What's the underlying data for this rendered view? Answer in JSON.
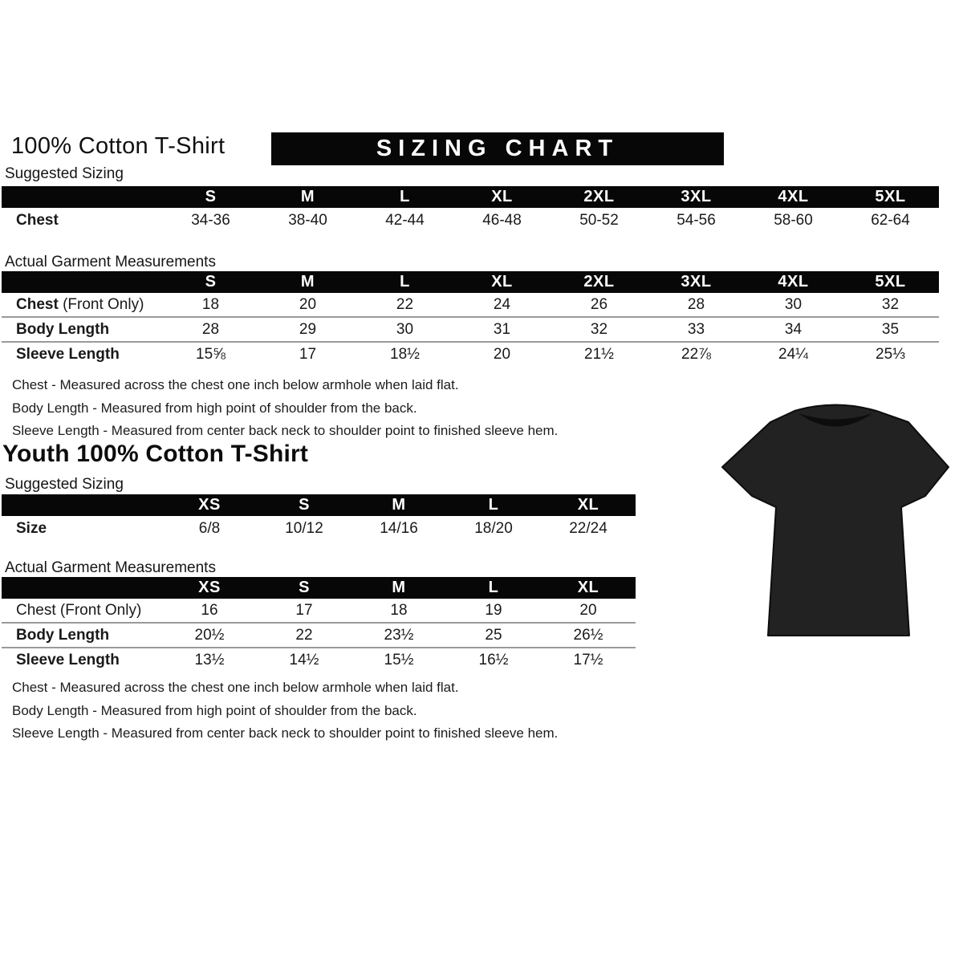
{
  "adult": {
    "title": "100% Cotton T-Shirt",
    "banner": "SIZING CHART",
    "suggested_label": "Suggested Sizing",
    "actual_label": "Actual Garment Measurements",
    "sizes": [
      "S",
      "M",
      "L",
      "XL",
      "2XL",
      "3XL",
      "4XL",
      "5XL"
    ],
    "suggested_rows": [
      {
        "label": "Chest",
        "suffix": "",
        "bold": true,
        "values": [
          "34-36",
          "38-40",
          "42-44",
          "46-48",
          "50-52",
          "54-56",
          "58-60",
          "62-64"
        ]
      }
    ],
    "actual_rows": [
      {
        "label": "Chest",
        "suffix": " (Front Only)",
        "bold": true,
        "values": [
          "18",
          "20",
          "22",
          "24",
          "26",
          "28",
          "30",
          "32"
        ]
      },
      {
        "label": "Body Length",
        "suffix": "",
        "bold": true,
        "values": [
          "28",
          "29",
          "30",
          "31",
          "32",
          "33",
          "34",
          "35"
        ]
      },
      {
        "label": "Sleeve Length",
        "suffix": "",
        "bold": true,
        "values": [
          "15⅝",
          "17",
          "18½",
          "20",
          "21½",
          "22⅞",
          "24¼",
          "25⅓"
        ]
      }
    ],
    "notes": [
      "Chest - Measured across the chest one inch below armhole when laid flat.",
      "Body Length - Measured from high point of shoulder from the back.",
      "Sleeve Length - Measured from center back neck to shoulder point to finished sleeve hem."
    ]
  },
  "youth": {
    "title": "Youth 100% Cotton T-Shirt",
    "suggested_label": "Suggested Sizing",
    "actual_label": "Actual Garment Measurements",
    "sizes": [
      "XS",
      "S",
      "M",
      "L",
      "XL"
    ],
    "suggested_rows": [
      {
        "label": "Size",
        "suffix": "",
        "bold": true,
        "values": [
          "6/8",
          "10/12",
          "14/16",
          "18/20",
          "22/24"
        ]
      }
    ],
    "actual_rows": [
      {
        "label": "Chest",
        "suffix": " (Front Only)",
        "bold": false,
        "values": [
          "16",
          "17",
          "18",
          "19",
          "20"
        ]
      },
      {
        "label": "Body Length",
        "suffix": "",
        "bold": true,
        "values": [
          "20½",
          "22",
          "23½",
          "25",
          "26½"
        ]
      },
      {
        "label": "Sleeve Length",
        "suffix": "",
        "bold": true,
        "values": [
          "13½",
          "14½",
          "15½",
          "16½",
          "17½"
        ]
      }
    ],
    "notes": [
      "Chest - Measured across the chest one inch below armhole when laid flat.",
      "Body Length - Measured from high point of shoulder from the back.",
      "Sleeve Length - Measured from center back neck to shoulder point to finished sleeve hem."
    ]
  },
  "tshirt": {
    "description": "black short-sleeve crew-neck t-shirt photo",
    "color": "#222222",
    "outline_color": "#0d0d0d"
  }
}
